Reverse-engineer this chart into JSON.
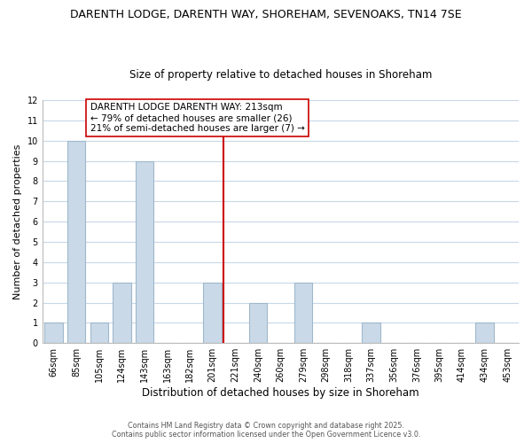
{
  "title_line1": "DARENTH LODGE, DARENTH WAY, SHOREHAM, SEVENOAKS, TN14 7SE",
  "title_line2": "Size of property relative to detached houses in Shoreham",
  "xlabel": "Distribution of detached houses by size in Shoreham",
  "ylabel": "Number of detached properties",
  "bar_labels": [
    "66sqm",
    "85sqm",
    "105sqm",
    "124sqm",
    "143sqm",
    "163sqm",
    "182sqm",
    "201sqm",
    "221sqm",
    "240sqm",
    "260sqm",
    "279sqm",
    "298sqm",
    "318sqm",
    "337sqm",
    "356sqm",
    "376sqm",
    "395sqm",
    "414sqm",
    "434sqm",
    "453sqm"
  ],
  "bar_values": [
    1,
    10,
    1,
    3,
    9,
    0,
    0,
    3,
    0,
    2,
    0,
    3,
    0,
    0,
    1,
    0,
    0,
    0,
    0,
    1,
    0
  ],
  "bar_color": "#c9d9e8",
  "bar_edge_color": "#a0b8cc",
  "vline_x": 7.5,
  "vline_color": "#cc0000",
  "ylim": [
    0,
    12
  ],
  "yticks": [
    0,
    1,
    2,
    3,
    4,
    5,
    6,
    7,
    8,
    9,
    10,
    11,
    12
  ],
  "annotation_text": "DARENTH LODGE DARENTH WAY: 213sqm\n← 79% of detached houses are smaller (26)\n21% of semi-detached houses are larger (7) →",
  "annotation_box_color": "#ffffff",
  "annotation_box_edge": "#cc0000",
  "footer_line1": "Contains HM Land Registry data © Crown copyright and database right 2025.",
  "footer_line2": "Contains public sector information licensed under the Open Government Licence v3.0.",
  "background_color": "#ffffff",
  "grid_color": "#c8d8e8"
}
